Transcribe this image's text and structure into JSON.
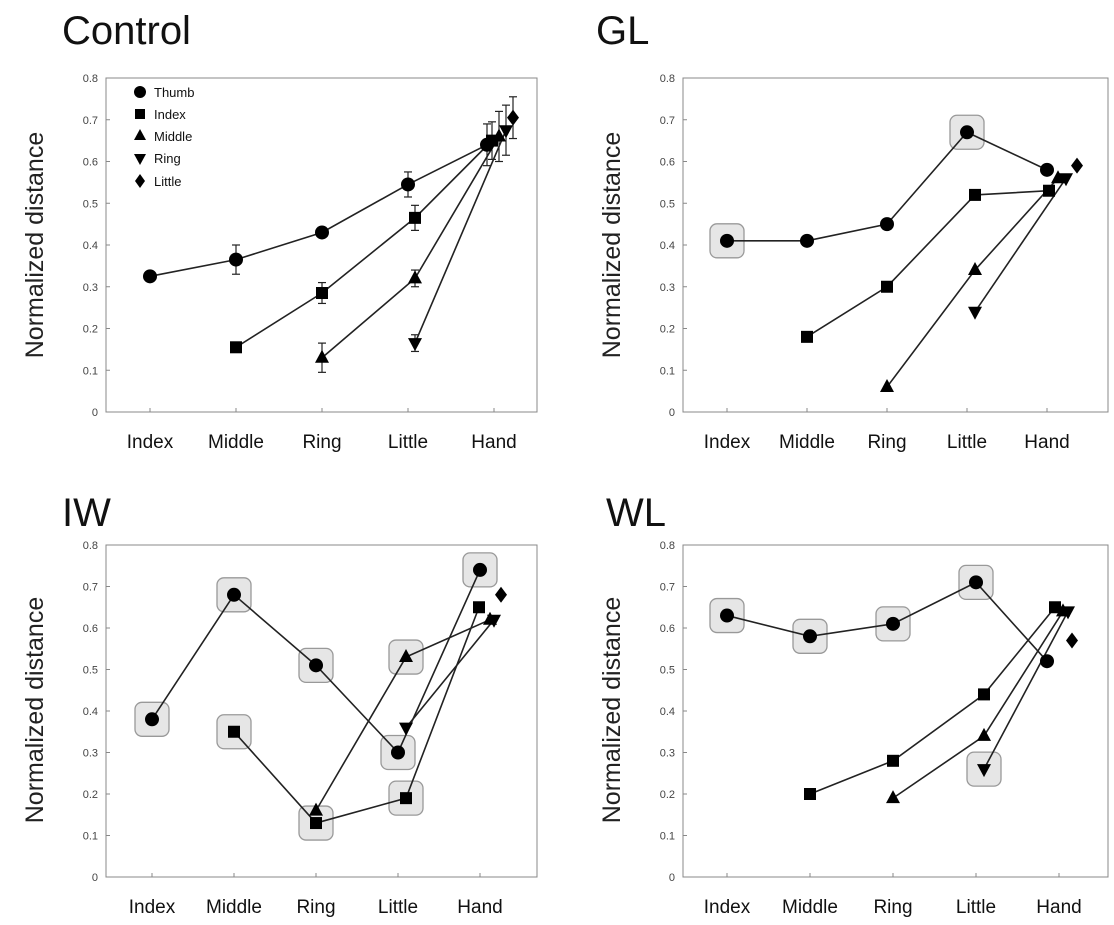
{
  "chart_data": [
    {
      "type": "line",
      "title": "Control",
      "ylabel": "Normalized distance",
      "xlabel": "",
      "categories": [
        "Index",
        "Middle",
        "Ring",
        "Little",
        "Hand"
      ],
      "ylim": [
        0,
        0.8
      ],
      "yticks": [
        "0",
        "0.1",
        "0.2",
        "0.3",
        "0.4",
        "0.5",
        "0.6",
        "0.7",
        "0.8"
      ],
      "legend": {
        "position": "top-left",
        "entries": [
          "Thumb",
          "Index",
          "Middle",
          "Ring",
          "Little"
        ]
      },
      "error_bars": true,
      "series": [
        {
          "name": "Thumb",
          "marker": "circle",
          "points": [
            {
              "x": "Index",
              "y": 0.325,
              "err": 0.005
            },
            {
              "x": "Middle",
              "y": 0.365,
              "err": 0.035
            },
            {
              "x": "Ring",
              "y": 0.43,
              "err": 0.01
            },
            {
              "x": "Little",
              "y": 0.545,
              "err": 0.03
            },
            {
              "x": "Hand",
              "y": 0.64,
              "err": 0.05
            }
          ]
        },
        {
          "name": "Index",
          "marker": "square",
          "points": [
            {
              "x": "Middle",
              "y": 0.155,
              "err": 0.01
            },
            {
              "x": "Ring",
              "y": 0.285,
              "err": 0.025
            },
            {
              "x": "Little",
              "y": 0.465,
              "err": 0.03
            },
            {
              "x": "Hand",
              "y": 0.65,
              "err": 0.045
            }
          ]
        },
        {
          "name": "Middle",
          "marker": "triangle-up",
          "points": [
            {
              "x": "Ring",
              "y": 0.13,
              "err": 0.035
            },
            {
              "x": "Little",
              "y": 0.32,
              "err": 0.02
            },
            {
              "x": "Hand",
              "y": 0.66,
              "err": 0.06
            }
          ]
        },
        {
          "name": "Ring",
          "marker": "triangle-down",
          "points": [
            {
              "x": "Little",
              "y": 0.165,
              "err": 0.02
            },
            {
              "x": "Hand",
              "y": 0.675,
              "err": 0.06
            }
          ]
        },
        {
          "name": "Little",
          "marker": "diamond",
          "points": [
            {
              "x": "Hand",
              "y": 0.705,
              "err": 0.05
            }
          ]
        }
      ]
    },
    {
      "type": "line",
      "title": "GL",
      "ylabel": "Normalized distance",
      "xlabel": "",
      "categories": [
        "Index",
        "Middle",
        "Ring",
        "Little",
        "Hand"
      ],
      "ylim": [
        0,
        0.8
      ],
      "yticks": [
        "0",
        "0.1",
        "0.2",
        "0.3",
        "0.4",
        "0.5",
        "0.6",
        "0.7",
        "0.8"
      ],
      "series": [
        {
          "marker": "circle",
          "points": [
            {
              "x": "Index",
              "y": 0.41,
              "highlight": true
            },
            {
              "x": "Middle",
              "y": 0.41
            },
            {
              "x": "Ring",
              "y": 0.45
            },
            {
              "x": "Little",
              "y": 0.67,
              "highlight": true
            },
            {
              "x": "Hand",
              "y": 0.58
            }
          ]
        },
        {
          "marker": "square",
          "points": [
            {
              "x": "Middle",
              "y": 0.18
            },
            {
              "x": "Ring",
              "y": 0.3
            },
            {
              "x": "Little",
              "y": 0.52
            },
            {
              "x": "Hand",
              "y": 0.53
            }
          ]
        },
        {
          "marker": "triangle-up",
          "points": [
            {
              "x": "Ring",
              "y": 0.06
            },
            {
              "x": "Little",
              "y": 0.34
            },
            {
              "x": "Hand",
              "y": 0.56
            }
          ]
        },
        {
          "marker": "triangle-down",
          "points": [
            {
              "x": "Little",
              "y": 0.24
            },
            {
              "x": "Hand",
              "y": 0.56
            }
          ]
        },
        {
          "marker": "diamond",
          "points": [
            {
              "x": "Hand",
              "y": 0.59
            }
          ]
        }
      ]
    },
    {
      "type": "line",
      "title": "IW",
      "ylabel": "Normalized distance",
      "xlabel": "",
      "categories": [
        "Index",
        "Middle",
        "Ring",
        "Little",
        "Hand"
      ],
      "ylim": [
        0,
        0.8
      ],
      "yticks": [
        "0",
        "0.1",
        "0.2",
        "0.3",
        "0.4",
        "0.5",
        "0.6",
        "0.7",
        "0.8"
      ],
      "series": [
        {
          "marker": "circle",
          "points": [
            {
              "x": "Index",
              "y": 0.38,
              "highlight": true
            },
            {
              "x": "Middle",
              "y": 0.68,
              "highlight": true
            },
            {
              "x": "Ring",
              "y": 0.51,
              "highlight": true
            },
            {
              "x": "Little",
              "y": 0.3,
              "highlight": true
            },
            {
              "x": "Hand",
              "y": 0.74,
              "highlight": true
            }
          ]
        },
        {
          "marker": "square",
          "points": [
            {
              "x": "Middle",
              "y": 0.35,
              "highlight": true
            },
            {
              "x": "Ring",
              "y": 0.13,
              "highlight": true
            },
            {
              "x": "Little",
              "y": 0.19,
              "highlight": true
            },
            {
              "x": "Hand",
              "y": 0.65
            }
          ]
        },
        {
          "marker": "triangle-up",
          "points": [
            {
              "x": "Ring",
              "y": 0.16
            },
            {
              "x": "Little",
              "y": 0.53,
              "highlight": true
            },
            {
              "x": "Hand",
              "y": 0.62
            }
          ]
        },
        {
          "marker": "triangle-down",
          "points": [
            {
              "x": "Little",
              "y": 0.36
            },
            {
              "x": "Hand",
              "y": 0.62
            }
          ]
        },
        {
          "marker": "diamond",
          "points": [
            {
              "x": "Hand",
              "y": 0.68
            }
          ]
        }
      ]
    },
    {
      "type": "line",
      "title": "WL",
      "ylabel": "Normalized distance",
      "xlabel": "",
      "categories": [
        "Index",
        "Middle",
        "Ring",
        "Little",
        "Hand"
      ],
      "ylim": [
        0,
        0.8
      ],
      "yticks": [
        "0",
        "0.1",
        "0.2",
        "0.3",
        "0.4",
        "0.5",
        "0.6",
        "0.7",
        "0.8"
      ],
      "series": [
        {
          "marker": "circle",
          "points": [
            {
              "x": "Index",
              "y": 0.63,
              "highlight": true
            },
            {
              "x": "Middle",
              "y": 0.58,
              "highlight": true
            },
            {
              "x": "Ring",
              "y": 0.61,
              "highlight": true
            },
            {
              "x": "Little",
              "y": 0.71,
              "highlight": true
            },
            {
              "x": "Hand",
              "y": 0.52
            }
          ]
        },
        {
          "marker": "square",
          "points": [
            {
              "x": "Middle",
              "y": 0.2
            },
            {
              "x": "Ring",
              "y": 0.28
            },
            {
              "x": "Little",
              "y": 0.44
            },
            {
              "x": "Hand",
              "y": 0.65
            }
          ]
        },
        {
          "marker": "triangle-up",
          "points": [
            {
              "x": "Ring",
              "y": 0.19
            },
            {
              "x": "Little",
              "y": 0.34
            },
            {
              "x": "Hand",
              "y": 0.64
            }
          ]
        },
        {
          "marker": "triangle-down",
          "points": [
            {
              "x": "Little",
              "y": 0.26,
              "highlight": true
            },
            {
              "x": "Hand",
              "y": 0.64
            }
          ]
        },
        {
          "marker": "diamond",
          "points": [
            {
              "x": "Hand",
              "y": 0.57
            }
          ]
        }
      ]
    }
  ],
  "colors": {
    "marker": "#000000",
    "line": "#222222",
    "axis": "#888888",
    "highlight_fill": "#e6e6e6",
    "highlight_stroke": "#999999"
  }
}
